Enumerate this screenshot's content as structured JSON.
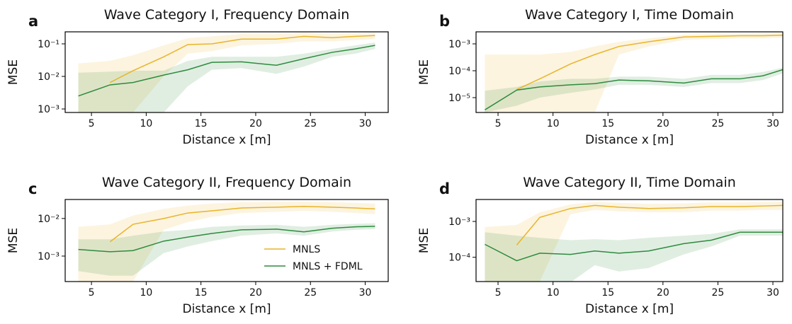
{
  "chart_data": [
    {
      "type": "line",
      "panel": "a",
      "title": "Wave Category I, Frequency Domain",
      "x_label": "Distance x [m]",
      "y_label": "MSE",
      "log_y": true,
      "x": [
        3.8,
        6.7,
        8.8,
        11.6,
        13.8,
        16.0,
        18.7,
        21.9,
        24.4,
        27.0,
        29.1,
        30.9
      ],
      "xlim": [
        2.6,
        32.1
      ],
      "xticks": [
        5,
        10,
        15,
        20,
        25,
        30
      ],
      "ylim": [
        0.00078,
        0.234
      ],
      "yticks": [
        {
          "value": 0.001,
          "label": "10⁻³"
        },
        {
          "value": 0.01,
          "label": "10⁻²"
        },
        {
          "value": 0.1,
          "label": "10⁻¹"
        }
      ],
      "series": [
        {
          "color": "#e8b429",
          "values": [
            null,
            0.0065,
            0.015,
            0.04,
            0.095,
            0.1,
            0.14,
            0.14,
            0.17,
            0.155,
            0.17,
            0.18
          ],
          "lower": [
            0.00078,
            0.00078,
            0.00078,
            0.01,
            0.05,
            0.06,
            0.09,
            0.1,
            0.12,
            0.12,
            0.13,
            0.14
          ],
          "upper": [
            0.025,
            0.03,
            0.045,
            0.09,
            0.15,
            0.17,
            0.2,
            0.2,
            0.22,
            0.2,
            0.21,
            0.22
          ]
        },
        {
          "color": "#2e8b3e",
          "values": [
            0.0025,
            0.0055,
            0.0065,
            0.011,
            0.016,
            0.027,
            0.028,
            0.022,
            0.035,
            0.055,
            0.07,
            0.09
          ],
          "lower": [
            0.00078,
            0.00078,
            0.00078,
            0.00078,
            0.005,
            0.016,
            0.018,
            0.012,
            0.02,
            0.04,
            0.05,
            0.07
          ],
          "upper": [
            0.013,
            0.014,
            0.015,
            0.015,
            0.03,
            0.04,
            0.04,
            0.04,
            0.05,
            0.07,
            0.09,
            0.11
          ]
        }
      ]
    },
    {
      "type": "line",
      "panel": "b",
      "title": "Wave Category I, Time Domain",
      "x_label": "Distance x [m]",
      "y_label": "MSE",
      "log_y": true,
      "x": [
        3.8,
        6.7,
        8.8,
        11.6,
        13.8,
        16.0,
        18.7,
        21.9,
        24.4,
        27.0,
        29.1,
        30.9
      ],
      "xlim": [
        3.0,
        30.9
      ],
      "xticks": [
        5,
        10,
        15,
        20,
        25,
        30
      ],
      "ylim": [
        2.8e-06,
        0.0028
      ],
      "yticks": [
        {
          "value": 1e-05,
          "label": "10⁻⁵"
        },
        {
          "value": 0.0001,
          "label": "10⁻⁴"
        },
        {
          "value": 0.001,
          "label": "10⁻³"
        }
      ],
      "series": [
        {
          "color": "#e8b429",
          "values": [
            null,
            2e-05,
            5e-05,
            0.00018,
            0.0004,
            0.0008,
            0.0012,
            0.0018,
            0.0019,
            0.002,
            0.002,
            0.0021
          ],
          "lower": [
            2.8e-06,
            2.8e-06,
            2.8e-06,
            2.8e-06,
            2.8e-06,
            0.0004,
            0.0008,
            0.0014,
            0.0015,
            0.0016,
            0.0016,
            0.0017
          ],
          "upper": [
            0.0004,
            0.0004,
            0.0004,
            0.0005,
            0.0008,
            0.0012,
            0.0016,
            0.0022,
            0.0023,
            0.0024,
            0.0025,
            0.0026
          ]
        },
        {
          "color": "#2e8b3e",
          "values": [
            3.5e-06,
            1.9e-05,
            2.5e-05,
            3e-05,
            3.3e-05,
            4.5e-05,
            4.2e-05,
            3.5e-05,
            5e-05,
            5e-05,
            6.5e-05,
            0.00011
          ],
          "lower": [
            2.8e-06,
            5e-06,
            1e-05,
            1.5e-05,
            2e-05,
            3e-05,
            3e-05,
            2.5e-05,
            3.5e-05,
            3.5e-05,
            4.5e-05,
            8e-05
          ],
          "upper": [
            1.8e-05,
            2.5e-05,
            4e-05,
            5e-05,
            5e-05,
            6e-05,
            6e-05,
            5e-05,
            7e-05,
            7e-05,
            9e-05,
            0.00013
          ]
        }
      ]
    },
    {
      "type": "line",
      "panel": "c",
      "title": "Wave Category II, Frequency Domain",
      "x_label": "Distance x [m]",
      "y_label": "MSE",
      "log_y": true,
      "legend": "lower right",
      "x": [
        3.8,
        6.7,
        8.8,
        11.6,
        13.8,
        16.0,
        18.7,
        21.9,
        24.4,
        27.0,
        29.1,
        30.9
      ],
      "xlim": [
        2.6,
        32.1
      ],
      "xticks": [
        5,
        10,
        15,
        20,
        25,
        30
      ],
      "ylim": [
        0.00021,
        0.032
      ],
      "yticks": [
        {
          "value": 0.001,
          "label": "10⁻³"
        },
        {
          "value": 0.01,
          "label": "10⁻²"
        }
      ],
      "series": [
        {
          "name": "MNLS",
          "color": "#e8b429",
          "values": [
            null,
            0.0024,
            0.007,
            0.01,
            0.014,
            0.016,
            0.019,
            0.02,
            0.021,
            0.02,
            0.019,
            0.018
          ],
          "lower": [
            0.00021,
            0.00021,
            0.00021,
            0.005,
            0.008,
            0.011,
            0.014,
            0.015,
            0.016,
            0.015,
            0.014,
            0.013
          ],
          "upper": [
            0.006,
            0.007,
            0.012,
            0.018,
            0.022,
            0.025,
            0.027,
            0.028,
            0.028,
            0.027,
            0.026,
            0.025
          ]
        },
        {
          "name": "MNLS + FDML",
          "color": "#2e8b3e",
          "values": [
            0.0015,
            0.0013,
            0.0014,
            0.0025,
            0.0032,
            0.004,
            0.005,
            0.0052,
            0.0044,
            0.0055,
            0.006,
            0.0062
          ],
          "lower": [
            0.0004,
            0.0003,
            0.0003,
            0.0012,
            0.0018,
            0.0025,
            0.0035,
            0.004,
            0.0035,
            0.0045,
            0.005,
            0.0052
          ],
          "upper": [
            0.0028,
            0.0028,
            0.0035,
            0.0045,
            0.005,
            0.006,
            0.0065,
            0.0068,
            0.006,
            0.0068,
            0.0072,
            0.0075
          ]
        }
      ]
    },
    {
      "type": "line",
      "panel": "d",
      "title": "Wave Category II, Time Domain",
      "x_label": "Distance x [m]",
      "y_label": "MSE",
      "log_y": true,
      "x": [
        3.8,
        6.7,
        8.8,
        11.6,
        13.8,
        16.0,
        18.7,
        21.9,
        24.4,
        27.0,
        29.1,
        30.9
      ],
      "xlim": [
        3.0,
        30.9
      ],
      "xticks": [
        5,
        10,
        15,
        20,
        25,
        30
      ],
      "ylim": [
        2.1e-05,
        0.0041
      ],
      "yticks": [
        {
          "value": 0.0001,
          "label": "10⁻⁴"
        },
        {
          "value": 0.001,
          "label": "10⁻³"
        }
      ],
      "series": [
        {
          "color": "#e8b429",
          "values": [
            null,
            0.00022,
            0.0013,
            0.0023,
            0.0028,
            0.0025,
            0.0023,
            0.0024,
            0.0026,
            0.0026,
            0.0027,
            0.0028
          ],
          "lower": [
            2.1e-05,
            2.1e-05,
            2.1e-05,
            0.0016,
            0.0021,
            0.0019,
            0.0018,
            0.0018,
            0.002,
            0.002,
            0.0021,
            0.0021
          ],
          "upper": [
            0.0007,
            0.0008,
            0.0018,
            0.003,
            0.0035,
            0.0033,
            0.0031,
            0.0032,
            0.0034,
            0.0034,
            0.0035,
            0.0036
          ]
        },
        {
          "color": "#2e8b3e",
          "values": [
            0.00023,
            8e-05,
            0.00013,
            0.00012,
            0.00015,
            0.00013,
            0.00015,
            0.00024,
            0.0003,
            0.0005,
            0.0005,
            0.0005
          ],
          "lower": [
            2.1e-05,
            2.1e-05,
            2.1e-05,
            2e-05,
            6e-05,
            4e-05,
            5e-05,
            0.00012,
            0.0002,
            0.0004,
            0.0004,
            0.0004
          ],
          "upper": [
            0.0005,
            0.0004,
            0.00035,
            0.0003,
            0.00032,
            0.0003,
            0.00035,
            0.0004,
            0.00045,
            0.0006,
            0.0006,
            0.0006
          ]
        }
      ]
    }
  ]
}
